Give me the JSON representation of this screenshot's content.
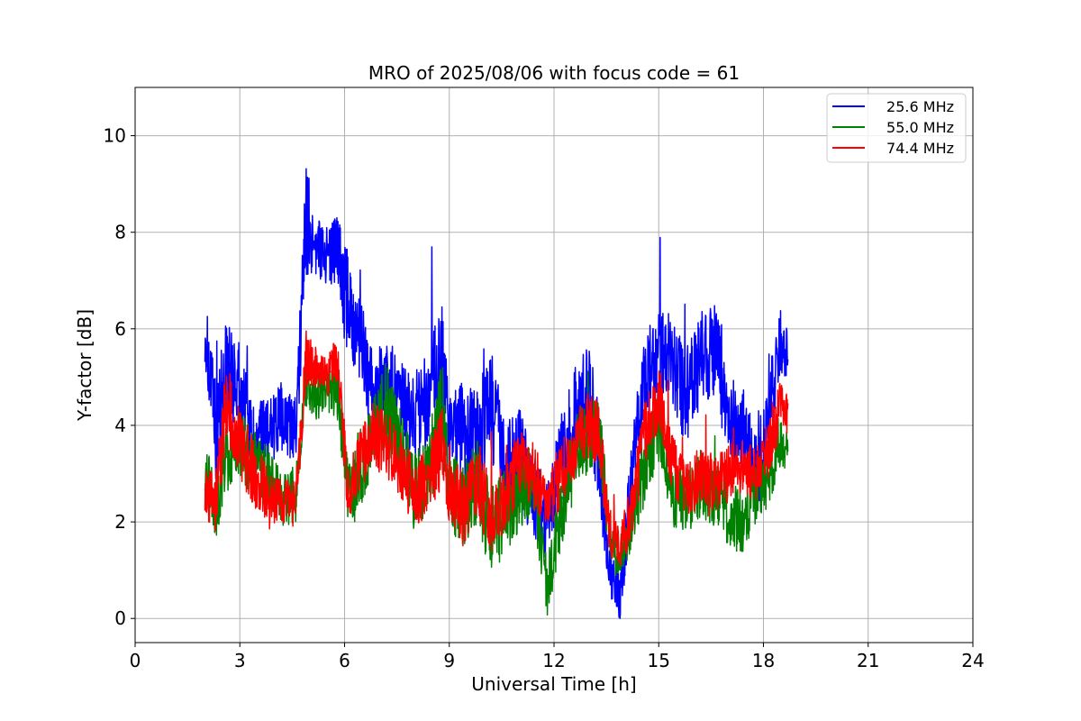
{
  "chart_data": {
    "type": "line",
    "title": "MRO of 2025/08/06 with focus code = 61",
    "xlabel": "Universal Time [h]",
    "ylabel": "Y-factor [dB]",
    "xlim": [
      0,
      24
    ],
    "ylim": [
      -0.5,
      11
    ],
    "xticks": [
      0,
      3,
      6,
      9,
      12,
      15,
      18,
      21,
      24
    ],
    "yticks": [
      0,
      2,
      4,
      6,
      8,
      10
    ],
    "grid": true,
    "legend_position": "top-right",
    "series": [
      {
        "name": "25.6 MHz",
        "color": "#0000ff",
        "x": [
          2.0,
          2.3,
          2.6,
          3.0,
          3.4,
          3.8,
          4.2,
          4.6,
          4.9,
          5.2,
          5.5,
          5.8,
          6.1,
          6.4,
          6.8,
          7.2,
          7.6,
          8.0,
          8.4,
          8.8,
          9.0,
          9.4,
          9.8,
          10.2,
          10.6,
          11.0,
          11.4,
          11.8,
          12.2,
          12.6,
          13.0,
          13.3,
          13.6,
          13.9,
          14.2,
          14.6,
          15.0,
          15.4,
          15.8,
          16.2,
          16.6,
          17.0,
          17.4,
          17.8,
          18.2,
          18.5,
          18.7
        ],
        "y": [
          6.0,
          3.8,
          5.2,
          4.8,
          3.6,
          3.9,
          4.1,
          3.8,
          8.2,
          7.8,
          7.5,
          7.6,
          6.4,
          6.0,
          4.6,
          5.0,
          4.4,
          4.2,
          4.6,
          5.2,
          3.8,
          4.0,
          3.6,
          4.5,
          3.0,
          3.4,
          2.6,
          2.0,
          3.2,
          4.2,
          4.6,
          3.4,
          1.0,
          0.4,
          2.8,
          4.8,
          5.6,
          5.2,
          4.6,
          5.4,
          5.6,
          4.2,
          3.8,
          3.0,
          4.4,
          5.8,
          5.4
        ],
        "amp": [
          0.7,
          1.2,
          1.0,
          0.9,
          0.8,
          0.7,
          0.8,
          0.8,
          1.3,
          0.7,
          0.6,
          0.8,
          1.4,
          1.0,
          0.9,
          1.0,
          0.9,
          1.0,
          1.0,
          1.4,
          0.9,
          1.0,
          1.1,
          1.2,
          1.0,
          1.1,
          0.9,
          0.8,
          1.0,
          1.0,
          1.1,
          1.1,
          0.6,
          0.5,
          0.9,
          1.0,
          1.0,
          1.0,
          1.0,
          1.0,
          1.0,
          0.9,
          1.0,
          0.9,
          0.8,
          0.7,
          0.5
        ]
      },
      {
        "name": "55.0 MHz",
        "color": "#008000",
        "x": [
          2.0,
          2.3,
          2.6,
          3.0,
          3.4,
          3.8,
          4.2,
          4.6,
          4.9,
          5.2,
          5.5,
          5.8,
          6.1,
          6.4,
          6.8,
          7.2,
          7.6,
          8.0,
          8.4,
          8.8,
          9.0,
          9.4,
          9.8,
          10.2,
          10.6,
          11.0,
          11.4,
          11.8,
          12.2,
          12.6,
          13.0,
          13.3,
          13.6,
          13.9,
          14.2,
          14.6,
          15.0,
          15.4,
          15.8,
          16.2,
          16.6,
          17.0,
          17.4,
          17.8,
          18.2,
          18.5,
          18.7
        ],
        "y": [
          3.2,
          2.2,
          3.4,
          3.6,
          3.2,
          3.0,
          2.4,
          2.6,
          5.0,
          4.6,
          4.8,
          4.8,
          2.6,
          2.9,
          3.8,
          4.4,
          3.6,
          2.6,
          3.0,
          4.4,
          2.6,
          2.4,
          2.8,
          1.8,
          2.2,
          2.6,
          2.8,
          0.6,
          2.2,
          3.4,
          3.8,
          3.8,
          1.6,
          1.2,
          1.8,
          3.2,
          4.0,
          2.6,
          2.4,
          2.8,
          2.6,
          2.2,
          2.0,
          2.6,
          3.0,
          3.8,
          3.4
        ],
        "amp": [
          0.6,
          0.6,
          0.8,
          0.8,
          0.7,
          0.6,
          0.6,
          0.6,
          0.6,
          0.5,
          0.5,
          0.8,
          0.6,
          0.7,
          0.8,
          0.9,
          0.8,
          0.8,
          0.8,
          1.0,
          0.8,
          0.9,
          0.9,
          0.9,
          0.9,
          0.8,
          0.8,
          0.6,
          0.8,
          0.8,
          0.8,
          0.8,
          0.5,
          0.5,
          0.6,
          0.8,
          0.8,
          0.7,
          0.7,
          0.7,
          0.7,
          0.7,
          0.7,
          0.7,
          0.6,
          0.6,
          0.4
        ]
      },
      {
        "name": "74.4 MHz",
        "color": "#ff0000",
        "x": [
          2.0,
          2.3,
          2.6,
          3.0,
          3.4,
          3.8,
          4.2,
          4.6,
          4.9,
          5.2,
          5.5,
          5.8,
          6.1,
          6.4,
          6.8,
          7.2,
          7.6,
          8.0,
          8.4,
          8.8,
          9.0,
          9.4,
          9.8,
          10.2,
          10.6,
          11.0,
          11.4,
          11.8,
          12.2,
          12.6,
          13.0,
          13.3,
          13.6,
          13.9,
          14.2,
          14.6,
          15.0,
          15.4,
          15.8,
          16.2,
          16.6,
          17.0,
          17.4,
          17.8,
          18.2,
          18.5,
          18.7
        ],
        "y": [
          2.6,
          2.4,
          4.4,
          3.6,
          3.0,
          2.6,
          2.4,
          2.4,
          5.4,
          5.2,
          5.0,
          5.4,
          2.6,
          3.2,
          3.8,
          3.6,
          3.2,
          2.6,
          2.8,
          3.6,
          2.8,
          2.2,
          3.0,
          2.0,
          2.6,
          3.2,
          3.0,
          2.4,
          3.0,
          3.6,
          4.0,
          3.8,
          1.8,
          1.4,
          2.2,
          3.8,
          4.6,
          3.2,
          2.6,
          3.0,
          2.8,
          3.0,
          3.2,
          3.0,
          3.6,
          4.4,
          4.2
        ],
        "amp": [
          0.5,
          0.6,
          1.0,
          0.8,
          0.7,
          0.6,
          0.5,
          0.5,
          0.6,
          0.4,
          0.4,
          0.5,
          0.6,
          0.6,
          0.7,
          0.7,
          0.7,
          0.7,
          0.7,
          0.9,
          0.8,
          0.8,
          0.8,
          0.8,
          0.8,
          0.7,
          0.7,
          0.6,
          0.7,
          0.7,
          0.7,
          0.7,
          0.5,
          0.5,
          0.6,
          0.7,
          0.7,
          0.6,
          0.6,
          0.6,
          0.6,
          0.6,
          0.6,
          0.6,
          0.6,
          0.6,
          0.4
        ]
      }
    ]
  }
}
